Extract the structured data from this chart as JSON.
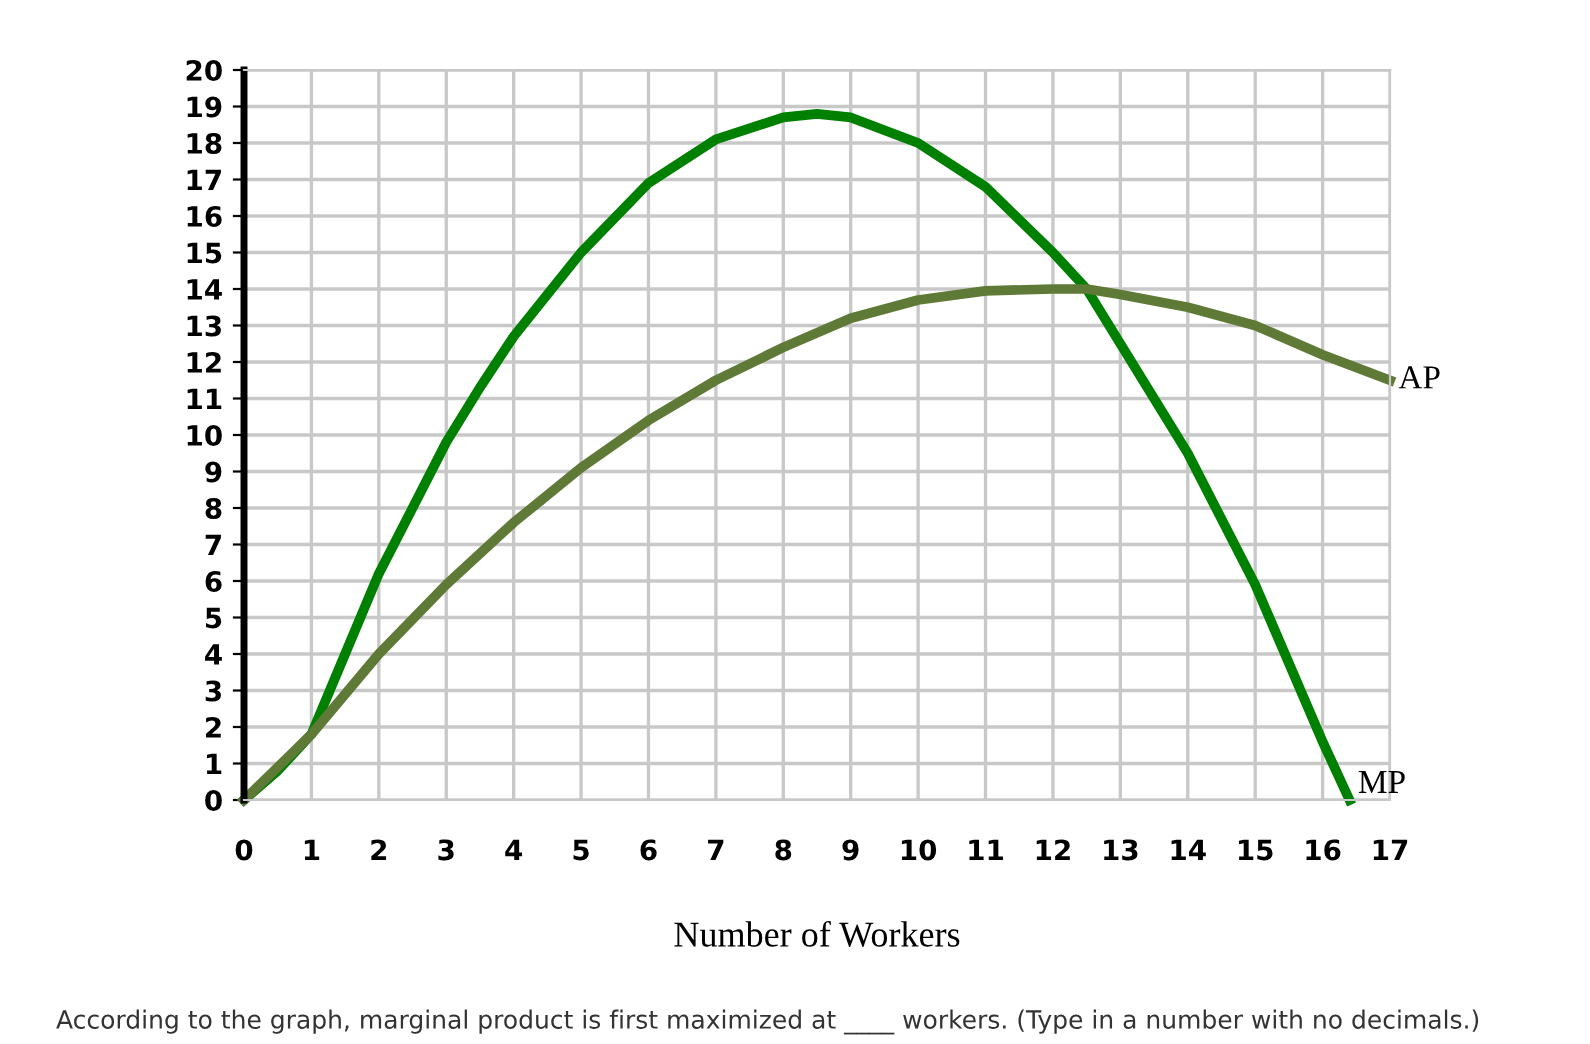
{
  "chart_data": {
    "type": "line",
    "xlabel": "Number of Workers",
    "annotations": [
      "According to the graph, marginal product is first maximized at ____ workers. (Type in a number with no decimals.)"
    ],
    "series": [
      {
        "name": "MP",
        "color": "#008000",
        "x": [
          0,
          0.5,
          1,
          1.5,
          2,
          2.5,
          3,
          3.5,
          4,
          5,
          6,
          7,
          8,
          8.5,
          9,
          10,
          11,
          12,
          12.5,
          13,
          14,
          15,
          16,
          16.4
        ],
        "values": [
          0,
          0.8,
          1.8,
          4,
          6.2,
          8,
          9.8,
          11.3,
          12.7,
          15,
          16.9,
          18.1,
          18.7,
          18.8,
          18.7,
          18,
          16.8,
          15,
          14,
          12.5,
          9.5,
          5.9,
          1.6,
          0
        ]
      },
      {
        "name": "AP",
        "color": "#5f7a36",
        "x": [
          0,
          0.5,
          1,
          2,
          3,
          4,
          5,
          6,
          7,
          8,
          9,
          10,
          11,
          12,
          12.5,
          13,
          14,
          15,
          16,
          17
        ],
        "values": [
          0,
          0.9,
          1.8,
          4,
          5.9,
          7.6,
          9.1,
          10.4,
          11.5,
          12.4,
          13.2,
          13.7,
          13.95,
          14,
          14,
          13.85,
          13.5,
          13,
          12.2,
          11.5
        ]
      }
    ],
    "xlim": [
      0,
      17
    ],
    "ylim": [
      0,
      20
    ],
    "xticks": [
      0,
      1,
      2,
      3,
      4,
      5,
      6,
      7,
      8,
      9,
      10,
      11,
      12,
      13,
      14,
      15,
      16,
      17
    ],
    "yticks": [
      0,
      1,
      2,
      3,
      4,
      5,
      6,
      7,
      8,
      9,
      10,
      11,
      12,
      13,
      14,
      15,
      16,
      17,
      18,
      19,
      20
    ],
    "grid": true,
    "marker": "none",
    "line_style": "solid",
    "legend": false
  }
}
